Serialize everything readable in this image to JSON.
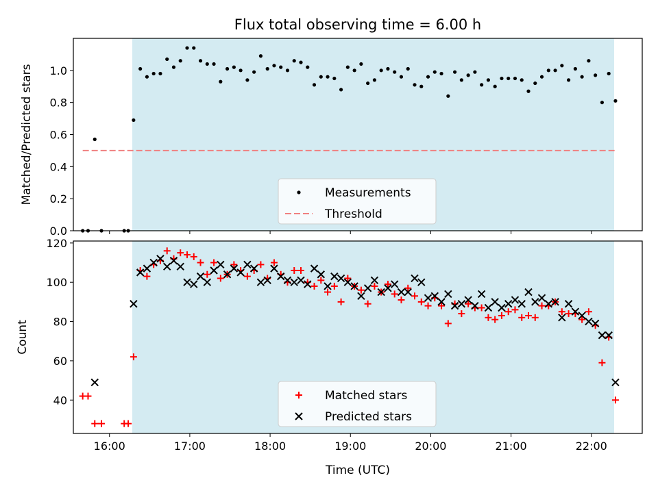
{
  "figure": {
    "title": "Flux total observing time = 6.00 h",
    "xlabel": "Time (UTC)"
  },
  "chart_data": [
    {
      "type": "scatter",
      "title": "Flux total observing time = 6.00 h",
      "ylabel": "Matched/Predicted stars",
      "xlim": [
        "15:33",
        "22:38"
      ],
      "ylim": [
        0,
        1.2
      ],
      "yticks": [
        "0.0",
        "0.2",
        "0.4",
        "0.6",
        "0.8",
        "1.0"
      ],
      "shaded_span": [
        "16:17",
        "22:17"
      ],
      "shade_color": "#d4ebf2",
      "legend": {
        "placement": "lower-center",
        "entries": [
          "Measurements",
          "Threshold"
        ]
      },
      "series": [
        {
          "name": "Measurements",
          "kind": "points",
          "color": "#000000",
          "points": [
            [
              "15:40",
              0.0
            ],
            [
              "15:44",
              0.0
            ],
            [
              "15:49",
              0.57
            ],
            [
              "15:54",
              0.0
            ],
            [
              "16:11",
              0.0
            ],
            [
              "16:14",
              0.0
            ],
            [
              "16:18",
              0.69
            ],
            [
              "16:23",
              1.01
            ],
            [
              "16:28",
              0.96
            ],
            [
              "16:33",
              0.98
            ],
            [
              "16:38",
              0.98
            ],
            [
              "16:43",
              1.07
            ],
            [
              "16:48",
              1.02
            ],
            [
              "16:53",
              1.06
            ],
            [
              "16:58",
              1.14
            ],
            [
              "17:03",
              1.14
            ],
            [
              "17:08",
              1.06
            ],
            [
              "17:13",
              1.04
            ],
            [
              "17:18",
              1.04
            ],
            [
              "17:23",
              0.93
            ],
            [
              "17:28",
              1.01
            ],
            [
              "17:33",
              1.02
            ],
            [
              "17:38",
              1.0
            ],
            [
              "17:43",
              0.94
            ],
            [
              "17:48",
              0.99
            ],
            [
              "17:53",
              1.09
            ],
            [
              "17:58",
              1.01
            ],
            [
              "18:03",
              1.03
            ],
            [
              "18:08",
              1.02
            ],
            [
              "18:13",
              1.0
            ],
            [
              "18:18",
              1.06
            ],
            [
              "18:23",
              1.05
            ],
            [
              "18:28",
              1.02
            ],
            [
              "18:33",
              0.91
            ],
            [
              "18:38",
              0.96
            ],
            [
              "18:43",
              0.96
            ],
            [
              "18:48",
              0.95
            ],
            [
              "18:53",
              0.88
            ],
            [
              "18:58",
              1.02
            ],
            [
              "19:03",
              1.0
            ],
            [
              "19:08",
              1.04
            ],
            [
              "19:13",
              0.92
            ],
            [
              "19:18",
              0.94
            ],
            [
              "19:23",
              1.0
            ],
            [
              "19:28",
              1.01
            ],
            [
              "19:33",
              0.99
            ],
            [
              "19:38",
              0.96
            ],
            [
              "19:43",
              1.01
            ],
            [
              "19:48",
              0.91
            ],
            [
              "19:53",
              0.9
            ],
            [
              "19:58",
              0.96
            ],
            [
              "20:03",
              0.99
            ],
            [
              "20:08",
              0.98
            ],
            [
              "20:13",
              0.84
            ],
            [
              "20:18",
              0.99
            ],
            [
              "20:23",
              0.94
            ],
            [
              "20:28",
              0.97
            ],
            [
              "20:33",
              0.99
            ],
            [
              "20:38",
              0.91
            ],
            [
              "20:43",
              0.94
            ],
            [
              "20:48",
              0.9
            ],
            [
              "20:53",
              0.95
            ],
            [
              "20:58",
              0.95
            ],
            [
              "21:03",
              0.95
            ],
            [
              "21:08",
              0.94
            ],
            [
              "21:13",
              0.87
            ],
            [
              "21:18",
              0.92
            ],
            [
              "21:23",
              0.96
            ],
            [
              "21:28",
              1.0
            ],
            [
              "21:33",
              1.0
            ],
            [
              "21:38",
              1.03
            ],
            [
              "21:43",
              0.94
            ],
            [
              "21:48",
              1.01
            ],
            [
              "21:53",
              0.96
            ],
            [
              "21:58",
              1.06
            ],
            [
              "22:03",
              0.97
            ],
            [
              "22:08",
              0.8
            ],
            [
              "22:13",
              0.98
            ],
            [
              "22:18",
              0.81
            ]
          ]
        },
        {
          "name": "Threshold",
          "kind": "hline",
          "color": "#f08080",
          "y": 0.5,
          "x_range": [
            "15:40",
            "22:18"
          ],
          "style": "dashed"
        }
      ]
    },
    {
      "type": "scatter",
      "ylabel": "Count",
      "xlim": [
        "15:33",
        "22:38"
      ],
      "ylim": [
        23,
        121
      ],
      "yticks": [
        "40",
        "60",
        "80",
        "100",
        "120"
      ],
      "xticks": [
        "16:00",
        "17:00",
        "18:00",
        "19:00",
        "20:00",
        "21:00",
        "22:00"
      ],
      "shaded_span": [
        "16:17",
        "22:17"
      ],
      "shade_color": "#d4ebf2",
      "legend": {
        "placement": "lower-center",
        "entries": [
          "Matched stars",
          "Predicted stars"
        ]
      },
      "series": [
        {
          "name": "Matched stars",
          "kind": "plus",
          "color": "#ff0000",
          "points": [
            [
              "15:40",
              42
            ],
            [
              "15:44",
              42
            ],
            [
              "15:49",
              28
            ],
            [
              "15:54",
              28
            ],
            [
              "16:11",
              28
            ],
            [
              "16:14",
              28
            ],
            [
              "16:18",
              62
            ],
            [
              "16:23",
              106
            ],
            [
              "16:28",
              103
            ],
            [
              "16:33",
              109
            ],
            [
              "16:38",
              111
            ],
            [
              "16:43",
              116
            ],
            [
              "16:48",
              112
            ],
            [
              "16:53",
              115
            ],
            [
              "16:58",
              114
            ],
            [
              "17:03",
              113
            ],
            [
              "17:08",
              110
            ],
            [
              "17:13",
              104
            ],
            [
              "17:18",
              110
            ],
            [
              "17:23",
              102
            ],
            [
              "17:28",
              104
            ],
            [
              "17:33",
              109
            ],
            [
              "17:38",
              106
            ],
            [
              "17:43",
              103
            ],
            [
              "17:48",
              106
            ],
            [
              "17:53",
              109
            ],
            [
              "17:58",
              102
            ],
            [
              "18:03",
              110
            ],
            [
              "18:08",
              104
            ],
            [
              "18:13",
              100
            ],
            [
              "18:18",
              106
            ],
            [
              "18:23",
              106
            ],
            [
              "18:28",
              100
            ],
            [
              "18:33",
              98
            ],
            [
              "18:38",
              101
            ],
            [
              "18:43",
              95
            ],
            [
              "18:48",
              98
            ],
            [
              "18:53",
              90
            ],
            [
              "18:58",
              102
            ],
            [
              "19:03",
              98
            ],
            [
              "19:08",
              96
            ],
            [
              "19:13",
              89
            ],
            [
              "19:18",
              98
            ],
            [
              "19:23",
              95
            ],
            [
              "19:28",
              99
            ],
            [
              "19:33",
              94
            ],
            [
              "19:38",
              91
            ],
            [
              "19:43",
              97
            ],
            [
              "19:48",
              93
            ],
            [
              "19:53",
              90
            ],
            [
              "19:58",
              88
            ],
            [
              "20:03",
              92
            ],
            [
              "20:08",
              88
            ],
            [
              "20:13",
              79
            ],
            [
              "20:18",
              89
            ],
            [
              "20:23",
              84
            ],
            [
              "20:28",
              89
            ],
            [
              "20:33",
              87
            ],
            [
              "20:38",
              87
            ],
            [
              "20:43",
              82
            ],
            [
              "20:48",
              81
            ],
            [
              "20:53",
              83
            ],
            [
              "20:58",
              85
            ],
            [
              "21:03",
              86
            ],
            [
              "21:08",
              82
            ],
            [
              "21:13",
              83
            ],
            [
              "21:18",
              82
            ],
            [
              "21:23",
              88
            ],
            [
              "21:28",
              88
            ],
            [
              "21:33",
              90
            ],
            [
              "21:38",
              85
            ],
            [
              "21:43",
              84
            ],
            [
              "21:48",
              84
            ],
            [
              "21:53",
              81
            ],
            [
              "21:58",
              85
            ],
            [
              "22:03",
              78
            ],
            [
              "22:08",
              59
            ],
            [
              "22:13",
              72
            ],
            [
              "22:18",
              40
            ]
          ]
        },
        {
          "name": "Predicted stars",
          "kind": "cross",
          "color": "#000000",
          "points": [
            [
              "15:49",
              49
            ],
            [
              "16:18",
              89
            ],
            [
              "16:23",
              105
            ],
            [
              "16:28",
              107
            ],
            [
              "16:33",
              110
            ],
            [
              "16:38",
              112
            ],
            [
              "16:43",
              108
            ],
            [
              "16:48",
              111
            ],
            [
              "16:53",
              108
            ],
            [
              "16:58",
              100
            ],
            [
              "17:03",
              99
            ],
            [
              "17:08",
              103
            ],
            [
              "17:13",
              100
            ],
            [
              "17:18",
              106
            ],
            [
              "17:23",
              109
            ],
            [
              "17:28",
              104
            ],
            [
              "17:33",
              107
            ],
            [
              "17:38",
              105
            ],
            [
              "17:43",
              109
            ],
            [
              "17:48",
              107
            ],
            [
              "17:53",
              100
            ],
            [
              "17:58",
              101
            ],
            [
              "18:03",
              107
            ],
            [
              "18:08",
              103
            ],
            [
              "18:13",
              101
            ],
            [
              "18:18",
              100
            ],
            [
              "18:23",
              101
            ],
            [
              "18:28",
              99
            ],
            [
              "18:33",
              107
            ],
            [
              "18:38",
              104
            ],
            [
              "18:43",
              98
            ],
            [
              "18:48",
              103
            ],
            [
              "18:53",
              102
            ],
            [
              "18:58",
              100
            ],
            [
              "19:03",
              98
            ],
            [
              "19:08",
              93
            ],
            [
              "19:13",
              97
            ],
            [
              "19:18",
              101
            ],
            [
              "19:23",
              95
            ],
            [
              "19:28",
              97
            ],
            [
              "19:33",
              99
            ],
            [
              "19:38",
              95
            ],
            [
              "19:43",
              95
            ],
            [
              "19:48",
              102
            ],
            [
              "19:53",
              100
            ],
            [
              "19:58",
              92
            ],
            [
              "20:03",
              93
            ],
            [
              "20:08",
              90
            ],
            [
              "20:13",
              94
            ],
            [
              "20:18",
              88
            ],
            [
              "20:23",
              89
            ],
            [
              "20:28",
              91
            ],
            [
              "20:33",
              88
            ],
            [
              "20:38",
              94
            ],
            [
              "20:43",
              87
            ],
            [
              "20:48",
              90
            ],
            [
              "20:53",
              87
            ],
            [
              "20:58",
              89
            ],
            [
              "21:03",
              91
            ],
            [
              "21:08",
              89
            ],
            [
              "21:13",
              95
            ],
            [
              "21:18",
              90
            ],
            [
              "21:23",
              92
            ],
            [
              "21:28",
              89
            ],
            [
              "21:33",
              90
            ],
            [
              "21:38",
              82
            ],
            [
              "21:43",
              89
            ],
            [
              "21:48",
              85
            ],
            [
              "21:53",
              83
            ],
            [
              "21:58",
              80
            ],
            [
              "22:03",
              79
            ],
            [
              "22:08",
              73
            ],
            [
              "22:13",
              73
            ],
            [
              "22:18",
              49
            ]
          ]
        }
      ]
    }
  ]
}
